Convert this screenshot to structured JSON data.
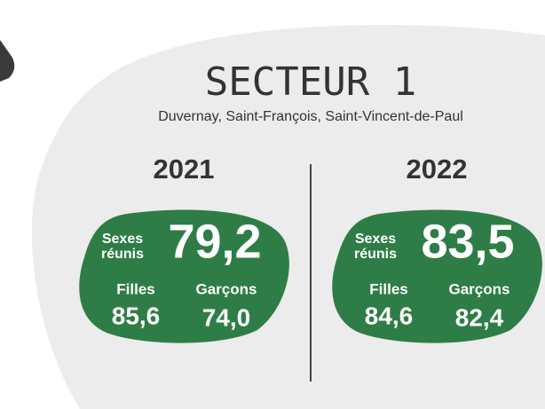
{
  "title": "SECTEUR 1",
  "subtitle": "Duvernay, Saint-François, Saint-Vincent-de-Paul",
  "panels": [
    {
      "year": "2021",
      "overall_label_1": "Sexes",
      "overall_label_2": "réunis",
      "overall": "79,2",
      "girls_label": "Filles",
      "girls": "85,6",
      "boys_label": "Garçons",
      "boys": "74,0"
    },
    {
      "year": "2022",
      "overall_label_1": "Sexes",
      "overall_label_2": "réunis",
      "overall": "83,5",
      "girls_label": "Filles",
      "girls": "84,6",
      "boys_label": "Garçons",
      "boys": "82,4"
    }
  ]
}
